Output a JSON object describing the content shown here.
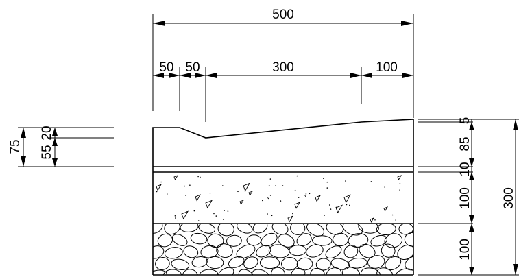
{
  "drawing": {
    "top_dimensions": {
      "overall": "500",
      "segment_1": "50",
      "segment_2": "50",
      "segment_3": "300",
      "segment_4": "100"
    },
    "left_dimensions": {
      "total": "75",
      "upper": "20",
      "lower": "55"
    },
    "right_dimensions": {
      "d1": "5",
      "d2": "85",
      "d3": "10",
      "d4": "100",
      "d5": "100",
      "total": "300"
    }
  }
}
